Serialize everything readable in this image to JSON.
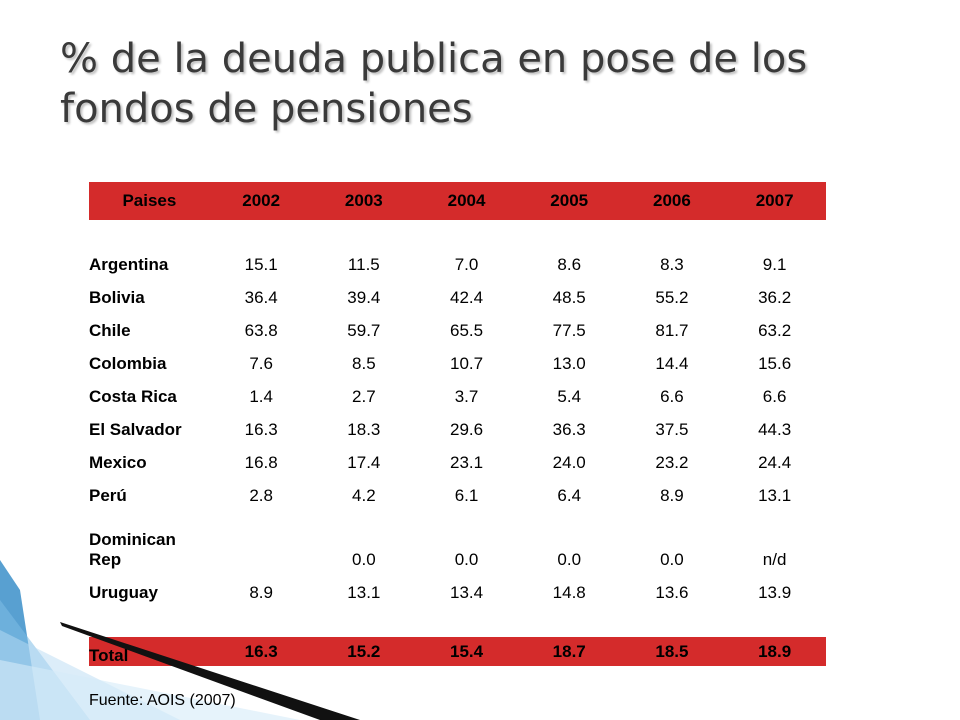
{
  "slide": {
    "title": "% de la deuda publica en pose de los fondos de pensiones",
    "source": "Fuente: AOIS (2007)"
  },
  "table": {
    "headers": [
      "Paises",
      "2002",
      "2003",
      "2004",
      "2005",
      "2006",
      "2007"
    ],
    "rows": [
      {
        "name": "Argentina",
        "values": [
          "15.1",
          "11.5",
          "7.0",
          "8.6",
          "8.3",
          "9.1"
        ]
      },
      {
        "name": "Bolivia",
        "values": [
          "36.4",
          "39.4",
          "42.4",
          "48.5",
          "55.2",
          "36.2"
        ]
      },
      {
        "name": "Chile",
        "values": [
          "63.8",
          "59.7",
          "65.5",
          "77.5",
          "81.7",
          "63.2"
        ]
      },
      {
        "name": "Colombia",
        "values": [
          "7.6",
          "8.5",
          "10.7",
          "13.0",
          "14.4",
          "15.6"
        ]
      },
      {
        "name": "Costa Rica",
        "values": [
          "1.4",
          "2.7",
          "3.7",
          "5.4",
          "6.6",
          "6.6"
        ]
      },
      {
        "name": "El Salvador",
        "values": [
          "16.3",
          "18.3",
          "29.6",
          "36.3",
          "37.5",
          "44.3"
        ]
      },
      {
        "name": "Mexico",
        "values": [
          "16.8",
          "17.4",
          "23.1",
          "24.0",
          "23.2",
          "24.4"
        ]
      },
      {
        "name": "Perú",
        "values": [
          "2.8",
          "4.2",
          "6.1",
          "6.4",
          "8.9",
          "13.1"
        ]
      },
      {
        "name_line1": "Dominican",
        "name_line2": "Rep",
        "values": [
          "",
          "0.0",
          "0.0",
          "0.0",
          "0.0",
          "n/d"
        ]
      },
      {
        "name": "Uruguay",
        "values": [
          "8.9",
          "13.1",
          "13.4",
          "14.8",
          "13.6",
          "13.9"
        ]
      }
    ],
    "total": {
      "name": "Total",
      "values": [
        "16.3",
        "15.2",
        "15.4",
        "18.7",
        "18.5",
        "18.9"
      ]
    }
  },
  "colors": {
    "header_bg": "#d42b2b",
    "title": "#3a3a3a",
    "accent_blue": "#3b8fc9"
  }
}
